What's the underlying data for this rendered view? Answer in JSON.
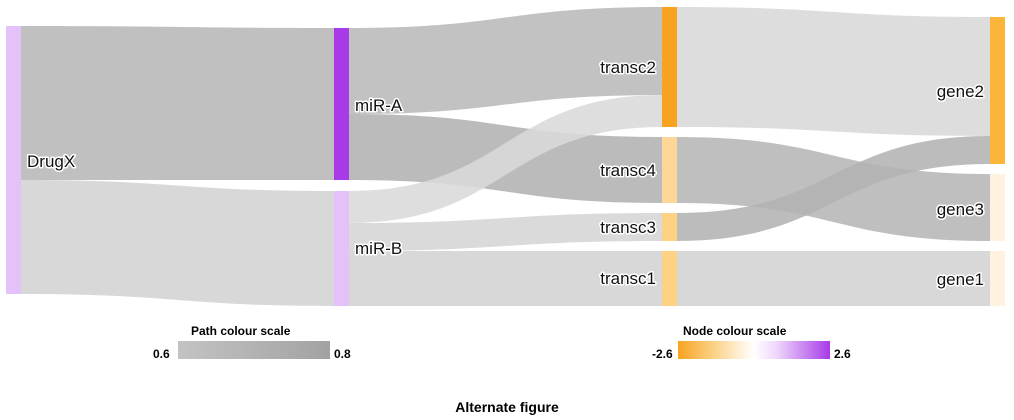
{
  "diagram": {
    "nodes": [
      {
        "id": "DrugX",
        "label": "DrugX",
        "color": "#e4c1f8"
      },
      {
        "id": "miR-A",
        "label": "miR-A",
        "color": "#a83ae8"
      },
      {
        "id": "miR-B",
        "label": "miR-B",
        "color": "#e4c1f8"
      },
      {
        "id": "transc2",
        "label": "transc2",
        "color": "#f7a320"
      },
      {
        "id": "transc4",
        "label": "transc4",
        "color": "#fdd797"
      },
      {
        "id": "transc3",
        "label": "transc3",
        "color": "#fdd282"
      },
      {
        "id": "transc1",
        "label": "transc1",
        "color": "#fdd282"
      },
      {
        "id": "gene2",
        "label": "gene2",
        "color": "#fbb53a"
      },
      {
        "id": "gene3",
        "label": "gene3",
        "color": "#fff2df"
      },
      {
        "id": "gene1",
        "label": "gene1",
        "color": "#fff2df"
      }
    ],
    "links": [
      {
        "source": "DrugX",
        "target": "miR-A",
        "color": "#b7b7b7"
      },
      {
        "source": "DrugX",
        "target": "miR-B",
        "color": "#d3d3d3"
      },
      {
        "source": "miR-A",
        "target": "transc2",
        "color": "#b9b9b9"
      },
      {
        "source": "miR-A",
        "target": "transc4",
        "color": "#b2b2b2"
      },
      {
        "source": "miR-B",
        "target": "transc2",
        "color": "#d9d9d9"
      },
      {
        "source": "miR-B",
        "target": "transc3",
        "color": "#d5d5d5"
      },
      {
        "source": "miR-B",
        "target": "transc1",
        "color": "#d3d3d3"
      },
      {
        "source": "transc2",
        "target": "gene2",
        "color": "#d8d8d8"
      },
      {
        "source": "transc4",
        "target": "gene3",
        "color": "#b6b6b6"
      },
      {
        "source": "transc3",
        "target": "gene2",
        "color": "#b3b3b3"
      },
      {
        "source": "transc1",
        "target": "gene1",
        "color": "#d3d3d3"
      }
    ]
  },
  "legends": {
    "path": {
      "title": "Path colour scale",
      "min": "0.6",
      "max": "0.8"
    },
    "node": {
      "title": "Node colour scale",
      "min": "-2.6",
      "max": "2.6"
    }
  },
  "caption": "Alternate figure"
}
